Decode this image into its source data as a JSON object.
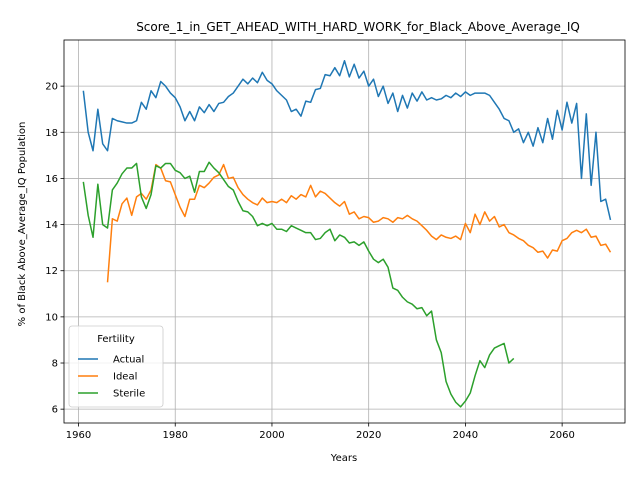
{
  "chart_data": {
    "type": "line",
    "title": "Score_1_in_GET_AHEAD_WITH_HARD_WORK_for_Black_Above_Average_IQ",
    "xlabel": "Years",
    "ylabel": "% of Black Above_Average_IQ Population",
    "xlim": [
      1957,
      2073
    ],
    "ylim": [
      5.4,
      22.0
    ],
    "xticks": [
      1960,
      1980,
      2000,
      2020,
      2040,
      2060
    ],
    "yticks": [
      6,
      8,
      10,
      12,
      14,
      16,
      18,
      20
    ],
    "grid": true,
    "legend": {
      "title": "Fertility",
      "placement": "lower-left"
    },
    "series": [
      {
        "name": "Actual",
        "color": "#1f77b4",
        "x": [
          1961,
          1962,
          1963,
          1964,
          1965,
          1966,
          1967,
          1968,
          1969,
          1970,
          1971,
          1972,
          1973,
          1974,
          1975,
          1976,
          1977,
          1978,
          1979,
          1980,
          1981,
          1982,
          1983,
          1984,
          1985,
          1986,
          1987,
          1988,
          1989,
          1990,
          1991,
          1992,
          1993,
          1994,
          1995,
          1996,
          1997,
          1998,
          1999,
          2000,
          2001,
          2002,
          2003,
          2004,
          2005,
          2006,
          2007,
          2008,
          2009,
          2010,
          2011,
          2012,
          2013,
          2014,
          2015,
          2016,
          2017,
          2018,
          2019,
          2020,
          2021,
          2022,
          2023,
          2024,
          2025,
          2026,
          2027,
          2028,
          2029,
          2030,
          2031,
          2032,
          2033,
          2034,
          2035,
          2036,
          2037,
          2038,
          2039,
          2040,
          2041,
          2042,
          2043,
          2044,
          2045,
          2046,
          2047,
          2048,
          2049,
          2050,
          2051,
          2052,
          2053,
          2054,
          2055,
          2056,
          2057,
          2058,
          2059,
          2060,
          2061,
          2062,
          2063,
          2064,
          2065,
          2066,
          2067,
          2068,
          2069,
          2070
        ],
        "values": [
          19.8,
          18.0,
          17.2,
          19.0,
          17.5,
          17.2,
          18.6,
          18.5,
          18.45,
          18.4,
          18.4,
          18.5,
          19.3,
          19.0,
          19.8,
          19.5,
          20.2,
          20.0,
          19.7,
          19.5,
          19.1,
          18.5,
          18.9,
          18.5,
          19.1,
          18.85,
          19.2,
          18.9,
          19.25,
          19.3,
          19.55,
          19.7,
          20.0,
          20.3,
          20.1,
          20.35,
          20.15,
          20.6,
          20.25,
          20.1,
          19.8,
          19.6,
          19.4,
          18.9,
          19.0,
          18.7,
          19.35,
          19.3,
          19.85,
          19.9,
          20.5,
          20.45,
          20.8,
          20.45,
          21.1,
          20.4,
          20.95,
          20.35,
          20.65,
          20.0,
          20.3,
          19.55,
          20.0,
          19.25,
          19.7,
          18.9,
          19.6,
          19.05,
          19.7,
          19.35,
          19.75,
          19.4,
          19.5,
          19.4,
          19.45,
          19.6,
          19.5,
          19.7,
          19.55,
          19.75,
          19.6,
          19.7,
          19.7,
          19.7,
          19.6,
          19.3,
          19.0,
          18.6,
          18.5,
          18.0,
          18.15,
          17.55,
          18.0,
          17.4,
          18.2,
          17.55,
          18.6,
          17.7,
          18.95,
          18.1,
          19.3,
          18.4,
          19.25,
          16.0,
          18.8,
          15.7,
          18.0,
          15.0,
          15.1,
          14.2
        ]
      },
      {
        "name": "Ideal",
        "color": "#ff7f0e",
        "x": [
          1966,
          1967,
          1968,
          1969,
          1970,
          1971,
          1972,
          1973,
          1974,
          1975,
          1976,
          1977,
          1978,
          1979,
          1980,
          1981,
          1982,
          1983,
          1984,
          1985,
          1986,
          1987,
          1988,
          1989,
          1990,
          1991,
          1992,
          1993,
          1994,
          1995,
          1996,
          1997,
          1998,
          1999,
          2000,
          2001,
          2002,
          2003,
          2004,
          2005,
          2006,
          2007,
          2008,
          2009,
          2010,
          2011,
          2012,
          2013,
          2014,
          2015,
          2016,
          2017,
          2018,
          2019,
          2020,
          2021,
          2022,
          2023,
          2024,
          2025,
          2026,
          2027,
          2028,
          2029,
          2030,
          2031,
          2032,
          2033,
          2034,
          2035,
          2036,
          2037,
          2038,
          2039,
          2040,
          2041,
          2042,
          2043,
          2044,
          2045,
          2046,
          2047,
          2048,
          2049,
          2050,
          2051,
          2052,
          2053,
          2054,
          2055,
          2056,
          2057,
          2058,
          2059,
          2060,
          2061,
          2062,
          2063,
          2064,
          2065,
          2066,
          2067,
          2068,
          2069,
          2070
        ],
        "values": [
          11.5,
          14.25,
          14.15,
          14.9,
          15.15,
          14.4,
          15.2,
          15.35,
          15.1,
          15.5,
          16.6,
          16.45,
          15.9,
          15.85,
          15.3,
          14.75,
          14.35,
          15.1,
          15.1,
          15.7,
          15.6,
          15.8,
          16.05,
          16.15,
          16.6,
          16.0,
          16.05,
          15.6,
          15.3,
          15.1,
          14.95,
          14.85,
          15.15,
          14.95,
          15.0,
          14.95,
          15.1,
          14.95,
          15.25,
          15.1,
          15.3,
          15.2,
          15.7,
          15.2,
          15.45,
          15.35,
          15.15,
          14.95,
          14.8,
          15.0,
          14.45,
          14.55,
          14.25,
          14.35,
          14.3,
          14.1,
          14.15,
          14.3,
          14.25,
          14.1,
          14.3,
          14.25,
          14.4,
          14.25,
          14.15,
          13.95,
          13.75,
          13.5,
          13.35,
          13.55,
          13.45,
          13.4,
          13.5,
          13.35,
          14.05,
          13.65,
          14.45,
          14.0,
          14.55,
          14.15,
          14.35,
          13.9,
          14.0,
          13.65,
          13.55,
          13.4,
          13.3,
          13.1,
          13.0,
          12.8,
          12.85,
          12.55,
          12.9,
          12.85,
          13.3,
          13.4,
          13.65,
          13.75,
          13.65,
          13.8,
          13.45,
          13.5,
          13.1,
          13.15,
          12.8
        ]
      },
      {
        "name": "Sterile",
        "color": "#2ca02c",
        "x": [
          1961,
          1962,
          1963,
          1964,
          1965,
          1966,
          1967,
          1968,
          1969,
          1970,
          1971,
          1972,
          1973,
          1974,
          1975,
          1976,
          1977,
          1978,
          1979,
          1980,
          1981,
          1982,
          1983,
          1984,
          1985,
          1986,
          1987,
          1988,
          1989,
          1990,
          1991,
          1992,
          1993,
          1994,
          1995,
          1996,
          1997,
          1998,
          1999,
          2000,
          2001,
          2002,
          2003,
          2004,
          2005,
          2006,
          2007,
          2008,
          2009,
          2010,
          2011,
          2012,
          2013,
          2014,
          2015,
          2016,
          2017,
          2018,
          2019,
          2020,
          2021,
          2022,
          2023,
          2024,
          2025,
          2026,
          2027,
          2028,
          2029,
          2030,
          2031,
          2032,
          2033,
          2034,
          2035,
          2036,
          2037,
          2038,
          2039,
          2040,
          2041,
          2042,
          2043,
          2044,
          2045,
          2046,
          2047,
          2048,
          2049,
          2050
        ],
        "values": [
          15.85,
          14.4,
          13.45,
          15.75,
          14.0,
          13.85,
          15.5,
          15.8,
          16.2,
          16.45,
          16.45,
          16.65,
          15.2,
          14.7,
          15.3,
          16.55,
          16.45,
          16.65,
          16.65,
          16.35,
          16.25,
          16.0,
          16.1,
          15.4,
          16.3,
          16.3,
          16.7,
          16.45,
          16.25,
          15.95,
          15.65,
          15.5,
          15.0,
          14.6,
          14.55,
          14.35,
          13.95,
          14.05,
          13.95,
          14.05,
          13.8,
          13.8,
          13.7,
          13.95,
          13.85,
          13.75,
          13.65,
          13.65,
          13.35,
          13.4,
          13.65,
          13.8,
          13.3,
          13.55,
          13.45,
          13.2,
          13.25,
          13.1,
          13.25,
          12.85,
          12.5,
          12.35,
          12.5,
          12.15,
          11.25,
          11.15,
          10.85,
          10.65,
          10.55,
          10.35,
          10.4,
          10.05,
          10.25,
          9.0,
          8.45,
          7.2,
          6.65,
          6.3,
          6.1,
          6.35,
          6.7,
          7.45,
          8.1,
          7.8,
          8.35,
          8.65,
          8.75,
          8.85,
          8.0,
          8.2
        ]
      }
    ]
  }
}
